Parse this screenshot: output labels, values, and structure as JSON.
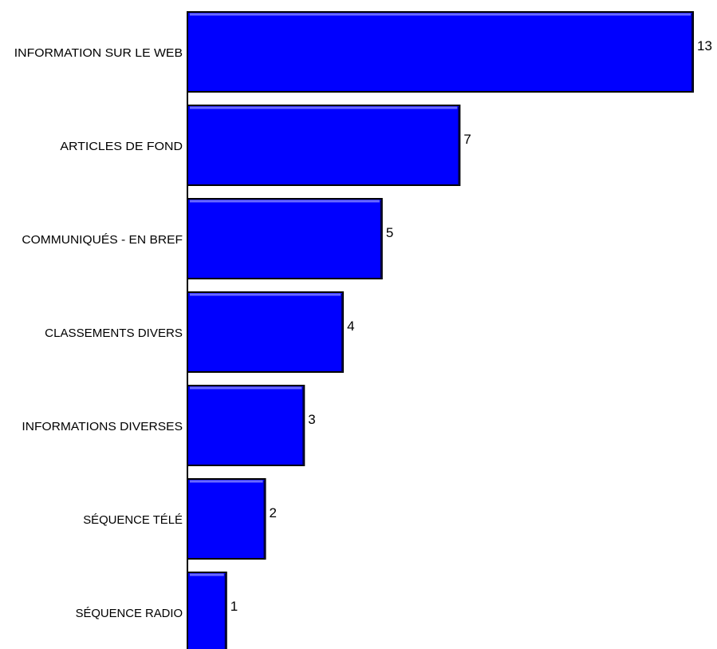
{
  "chart_data": {
    "type": "bar",
    "orientation": "horizontal",
    "categories": [
      "INFORMATION SUR LE WEB",
      "ARTICLES DE FOND",
      "COMMUNIQUÉS - EN BREF",
      "CLASSEMENTS DIVERS",
      "INFORMATIONS DIVERSES",
      "SÉQUENCE TÉLÉ",
      "SÉQUENCE RADIO"
    ],
    "values": [
      13,
      7,
      5,
      4,
      3,
      2,
      1
    ],
    "data_labels": [
      "13",
      "7",
      "5",
      "4",
      "3",
      "2",
      "1"
    ],
    "title": "",
    "xlabel": "",
    "ylabel": "",
    "xlim": [
      0,
      13
    ],
    "grid": false,
    "legend": "none",
    "colors": {
      "bar_fill": "#0000ff",
      "bar_highlight": "#6a6aff",
      "bar_outline": "#000000",
      "axis": "#000000",
      "text": "#000000",
      "background": "#ffffff"
    }
  }
}
